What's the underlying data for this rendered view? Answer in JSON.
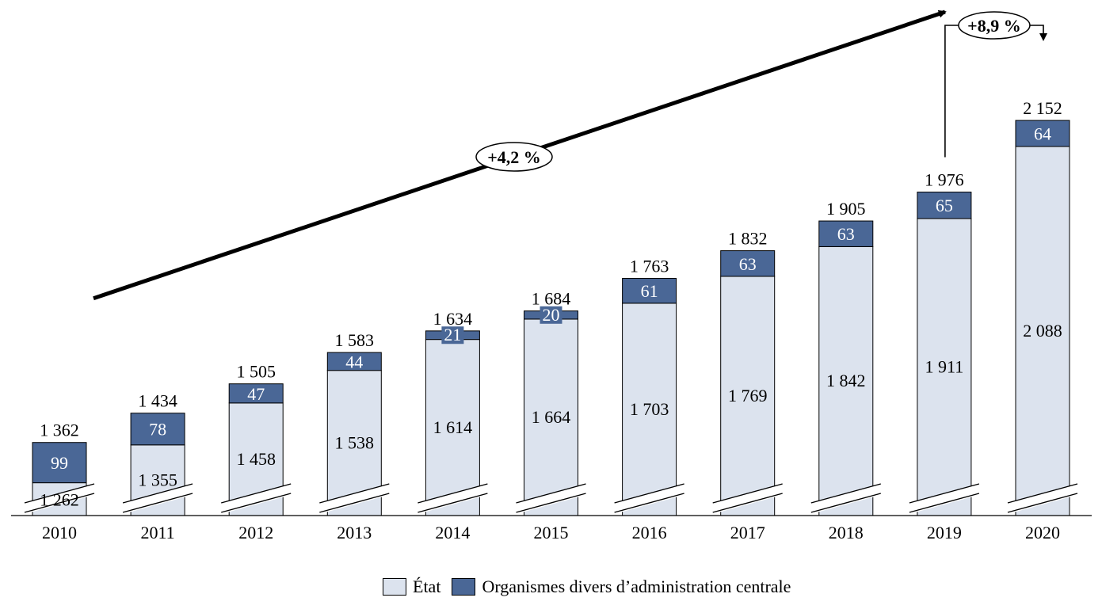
{
  "chart_data": {
    "type": "bar",
    "stacked": true,
    "categories": [
      "2010",
      "2011",
      "2012",
      "2013",
      "2014",
      "2015",
      "2016",
      "2017",
      "2018",
      "2019",
      "2020"
    ],
    "series": [
      {
        "name": "État",
        "values": [
          1262,
          1355,
          1458,
          1538,
          1614,
          1664,
          1703,
          1769,
          1842,
          1911,
          2088
        ],
        "labels": [
          "1 262",
          "1 355",
          "1 458",
          "1 538",
          "1 614",
          "1 664",
          "1 703",
          "1 769",
          "1 842",
          "1 911",
          "2 088"
        ]
      },
      {
        "name": "Organismes divers d’administration centrale",
        "values": [
          99,
          78,
          47,
          44,
          21,
          20,
          61,
          63,
          63,
          65,
          64
        ],
        "labels": [
          "99",
          "78",
          "47",
          "44",
          "21",
          "20",
          "61",
          "63",
          "63",
          "65",
          "64"
        ]
      }
    ],
    "totals": [
      1362,
      1434,
      1505,
      1583,
      1634,
      1684,
      1763,
      1832,
      1905,
      1976,
      2152
    ],
    "total_labels": [
      "1 362",
      "1 434",
      "1 505",
      "1 583",
      "1 634",
      "1 684",
      "1 763",
      "1 832",
      "1 905",
      "1 976",
      "2 152"
    ],
    "y_axis_broken": true,
    "title": "",
    "xlabel": "",
    "ylabel": "",
    "legend_position": "bottom",
    "annotations": [
      {
        "text": "+4,2 %",
        "from": "2010",
        "to": "2019"
      },
      {
        "text": "+8,9 %",
        "from": "2019",
        "to": "2020"
      }
    ],
    "colors": {
      "etat": "#dce3ee",
      "odac": "#4a6796",
      "odac_text": "#ffffff",
      "axis": "#000000"
    }
  },
  "legend": {
    "etat_label": "État",
    "odac_label": "Organismes divers d’administration centrale"
  }
}
